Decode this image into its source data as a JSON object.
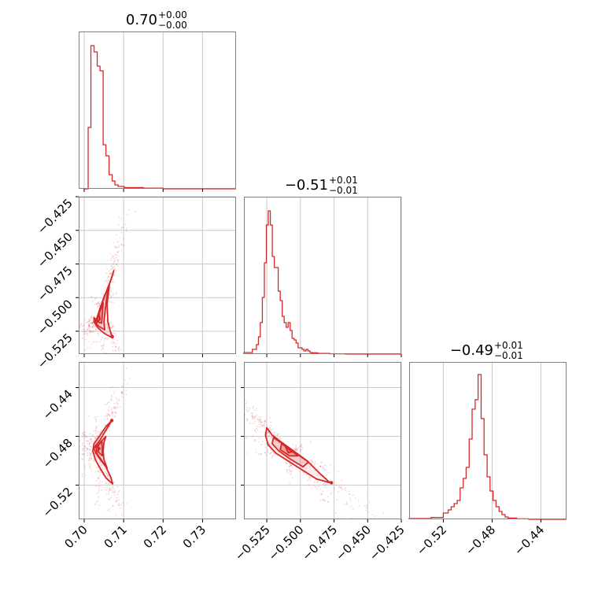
{
  "chart_data": {
    "type": "corner",
    "colors": {
      "accent": "#d62728",
      "frame": "#808080",
      "grid": "#c8c8c8"
    },
    "parameters": [
      {
        "title": {
          "value": "0.70",
          "plus": "+0.00",
          "minus": "−0.00"
        },
        "range": [
          0.6986,
          0.7385
        ],
        "ticks": [
          0.7,
          0.71,
          0.72,
          0.73
        ],
        "tick_labels": [
          "0.70",
          "0.71",
          "0.72",
          "0.73"
        ],
        "hist_edges": [
          0.7,
          0.701,
          0.7017,
          0.7025,
          0.7033,
          0.704,
          0.7048,
          0.7055,
          0.7063,
          0.7071,
          0.7078,
          0.7086,
          0.7101,
          0.715,
          0.72,
          0.7385
        ],
        "hist_counts": [
          0,
          0.39,
          0.91,
          0.87,
          0.78,
          0.75,
          0.28,
          0.21,
          0.09,
          0.05,
          0.025,
          0.015,
          0.008,
          0.004,
          0
        ]
      },
      {
        "title": {
          "value": "−0.51",
          "plus": "+0.01",
          "minus": "−0.01"
        },
        "range": [
          -0.542,
          -0.425
        ],
        "ticks": [
          -0.525,
          -0.5,
          -0.475,
          -0.45,
          -0.425
        ],
        "tick_labels": [
          "−0.525",
          "−0.500",
          "−0.475",
          "−0.450",
          "−0.425"
        ],
        "hist_edges": [
          -0.542,
          -0.5357,
          -0.5327,
          -0.5312,
          -0.5298,
          -0.5283,
          -0.5268,
          -0.5253,
          -0.5239,
          -0.5224,
          -0.5209,
          -0.5194,
          -0.518,
          -0.5165,
          -0.515,
          -0.5135,
          -0.5121,
          -0.5106,
          -0.5091,
          -0.5076,
          -0.5062,
          -0.5047,
          -0.5032,
          -0.5017,
          -0.5003,
          -0.4988,
          -0.4973,
          -0.4958,
          -0.4944,
          -0.4929,
          -0.4914,
          -0.487,
          -0.4781,
          -0.4663,
          -0.425
        ],
        "hist_counts": [
          0.01,
          0.03,
          0.06,
          0.11,
          0.2,
          0.36,
          0.58,
          0.82,
          0.91,
          0.82,
          0.62,
          0.55,
          0.55,
          0.4,
          0.34,
          0.24,
          0.2,
          0.17,
          0.2,
          0.15,
          0.1,
          0.09,
          0.07,
          0.04,
          0.04,
          0.03,
          0.02,
          0.03,
          0.02,
          0.01,
          0.008,
          0.004,
          0.002,
          0
        ]
      },
      {
        "title": {
          "value": "−0.49",
          "plus": "+0.01",
          "minus": "−0.01"
        },
        "range": [
          -0.548,
          -0.419
        ],
        "ticks": [
          -0.52,
          -0.48,
          -0.44
        ],
        "tick_labels": [
          "−0.52",
          "−0.48",
          "−0.44"
        ],
        "hist_edges": [
          -0.548,
          -0.53,
          -0.52,
          -0.516,
          -0.5135,
          -0.5111,
          -0.5086,
          -0.5062,
          -0.5037,
          -0.5013,
          -0.4988,
          -0.4964,
          -0.4939,
          -0.4915,
          -0.489,
          -0.4866,
          -0.4841,
          -0.4817,
          -0.4792,
          -0.4768,
          -0.4743,
          -0.4719,
          -0.4694,
          -0.467,
          -0.46,
          -0.45,
          -0.419
        ],
        "hist_counts": [
          0.005,
          0.012,
          0.04,
          0.06,
          0.08,
          0.1,
          0.12,
          0.2,
          0.26,
          0.33,
          0.51,
          0.7,
          0.76,
          0.92,
          0.64,
          0.41,
          0.27,
          0.18,
          0.12,
          0.08,
          0.05,
          0.03,
          0.015,
          0.008,
          0.003,
          0
        ]
      }
    ],
    "pairs": [
      {
        "x": 0,
        "y": 1,
        "contours": [
          [
            [
              0.7032,
              -0.5168
            ],
            [
              0.7042,
              -0.507
            ],
            [
              0.7058,
              -0.494
            ],
            [
              0.707,
              -0.485
            ],
            [
              0.7075,
              -0.48
            ],
            [
              0.7064,
              -0.49
            ],
            [
              0.7058,
              -0.505
            ],
            [
              0.706,
              -0.518
            ],
            [
              0.7066,
              -0.525
            ],
            [
              0.7072,
              -0.53
            ],
            [
              0.705,
              -0.5265
            ],
            [
              0.7034,
              -0.5222
            ],
            [
              0.7025,
              -0.518
            ],
            [
              0.7025,
              -0.515
            ],
            [
              0.7032,
              -0.5168
            ]
          ],
          [
            [
              0.703,
              -0.517
            ],
            [
              0.704,
              -0.508
            ],
            [
              0.7052,
              -0.498
            ],
            [
              0.706,
              -0.494
            ],
            [
              0.7055,
              -0.505
            ],
            [
              0.705,
              -0.518
            ],
            [
              0.7052,
              -0.524
            ],
            [
              0.7035,
              -0.521
            ],
            [
              0.7026,
              -0.517
            ],
            [
              0.703,
              -0.517
            ]
          ],
          [
            [
              0.7032,
              -0.516
            ],
            [
              0.704,
              -0.51
            ],
            [
              0.7048,
              -0.504
            ],
            [
              0.7046,
              -0.512
            ],
            [
              0.7044,
              -0.519
            ],
            [
              0.7032,
              -0.518
            ],
            [
              0.7032,
              -0.516
            ]
          ],
          [
            [
              0.7032,
              -0.5165
            ],
            [
              0.7038,
              -0.5125
            ],
            [
              0.704,
              -0.516
            ],
            [
              0.7034,
              -0.518
            ],
            [
              0.7032,
              -0.5165
            ]
          ]
        ],
        "hotspot": [
          0.7071,
          -0.529
        ]
      },
      {
        "x": 0,
        "y": 2,
        "contours": [
          [
            [
              0.707,
              -0.467
            ],
            [
              0.7055,
              -0.475
            ],
            [
              0.704,
              -0.483
            ],
            [
              0.703,
              -0.487
            ],
            [
              0.7025,
              -0.49
            ],
            [
              0.703,
              -0.494
            ],
            [
              0.7042,
              -0.4995
            ],
            [
              0.7055,
              -0.505
            ],
            [
              0.7068,
              -0.514
            ],
            [
              0.7072,
              -0.519
            ],
            [
              0.7055,
              -0.514
            ],
            [
              0.704,
              -0.506
            ],
            [
              0.7028,
              -0.499
            ],
            [
              0.7022,
              -0.492
            ],
            [
              0.7025,
              -0.486
            ],
            [
              0.7038,
              -0.48
            ],
            [
              0.7055,
              -0.472
            ],
            [
              0.707,
              -0.467
            ]
          ],
          [
            [
              0.7055,
              -0.48
            ],
            [
              0.704,
              -0.485
            ],
            [
              0.703,
              -0.489
            ],
            [
              0.7032,
              -0.494
            ],
            [
              0.7045,
              -0.5
            ],
            [
              0.7058,
              -0.506
            ],
            [
              0.705,
              -0.499
            ],
            [
              0.7048,
              -0.492
            ],
            [
              0.705,
              -0.485
            ],
            [
              0.7055,
              -0.48
            ]
          ],
          [
            [
              0.7045,
              -0.484
            ],
            [
              0.7034,
              -0.488
            ],
            [
              0.7036,
              -0.493
            ],
            [
              0.7046,
              -0.496
            ],
            [
              0.7045,
              -0.484
            ]
          ],
          [
            [
              0.7034,
              -0.488
            ],
            [
              0.704,
              -0.49
            ],
            [
              0.7035,
              -0.4915
            ],
            [
              0.7034,
              -0.488
            ]
          ]
        ],
        "hotspot": [
          0.707,
          -0.467
        ]
      },
      {
        "x": 1,
        "y": 2,
        "contours": [
          [
            [
              -0.525,
              -0.473
            ],
            [
              -0.521,
              -0.479
            ],
            [
              -0.515,
              -0.484
            ],
            [
              -0.505,
              -0.492
            ],
            [
              -0.495,
              -0.5
            ],
            [
              -0.485,
              -0.511
            ],
            [
              -0.478,
              -0.518
            ],
            [
              -0.488,
              -0.515
            ],
            [
              -0.498,
              -0.508
            ],
            [
              -0.508,
              -0.501
            ],
            [
              -0.518,
              -0.494
            ],
            [
              -0.524,
              -0.487
            ],
            [
              -0.526,
              -0.479
            ],
            [
              -0.525,
              -0.473
            ]
          ],
          [
            [
              -0.52,
              -0.481
            ],
            [
              -0.512,
              -0.487
            ],
            [
              -0.502,
              -0.495
            ],
            [
              -0.494,
              -0.501
            ],
            [
              -0.498,
              -0.505
            ],
            [
              -0.507,
              -0.499
            ],
            [
              -0.516,
              -0.492
            ],
            [
              -0.521,
              -0.486
            ],
            [
              -0.52,
              -0.481
            ]
          ],
          [
            [
              -0.514,
              -0.486
            ],
            [
              -0.506,
              -0.492
            ],
            [
              -0.502,
              -0.496
            ],
            [
              -0.508,
              -0.496
            ],
            [
              -0.515,
              -0.491
            ],
            [
              -0.514,
              -0.486
            ]
          ],
          [
            [
              -0.511,
              -0.489
            ],
            [
              -0.506,
              -0.4925
            ],
            [
              -0.509,
              -0.4935
            ],
            [
              -0.511,
              -0.489
            ]
          ]
        ],
        "hotspot": [
          -0.477,
          -0.518
        ]
      }
    ]
  }
}
